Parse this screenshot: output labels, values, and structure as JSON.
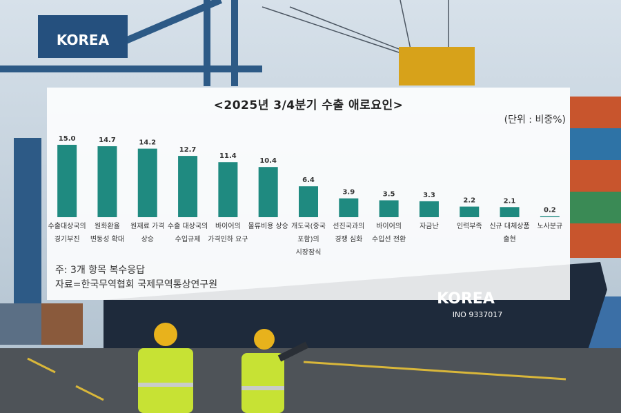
{
  "scene": {
    "crane_sign": "KOREA",
    "ship_name": "KOREA",
    "ship_id": "INO 9337017"
  },
  "chart_data": {
    "type": "bar",
    "title": "<2025년 3/4분기 수출 애로요인>",
    "unit": "(단위 : 비중%)",
    "categories": [
      "수출대상국의\n경기부진",
      "원화환율\n변동성 확대",
      "원재료 가격\n상승",
      "수출 대상국의\n수입규제",
      "바이어의\n가격인하 요구",
      "물류비용 상승",
      "개도국(중국\n포함)의\n시장잠식",
      "선진국과의\n경쟁 심화",
      "바이어의\n수입선 전환",
      "자금난",
      "인력부족",
      "신규 대체상품\n출현",
      "노사분규"
    ],
    "values": [
      15.0,
      14.7,
      14.2,
      12.7,
      11.4,
      10.4,
      6.4,
      3.9,
      3.5,
      3.3,
      2.2,
      2.1,
      0.2
    ],
    "value_labels": [
      "15.0",
      "14.7",
      "14.2",
      "12.7",
      "11.4",
      "10.4",
      "6.4",
      "3.9",
      "3.5",
      "3.3",
      "2.2",
      "2.1",
      "0.2"
    ],
    "ylim": [
      0,
      16
    ],
    "grid": false,
    "bar_color": "#1f8a80",
    "notes": [
      "주: 3개 항목 복수응답",
      "자료=한국무역협회 국제무역통상연구원"
    ]
  }
}
